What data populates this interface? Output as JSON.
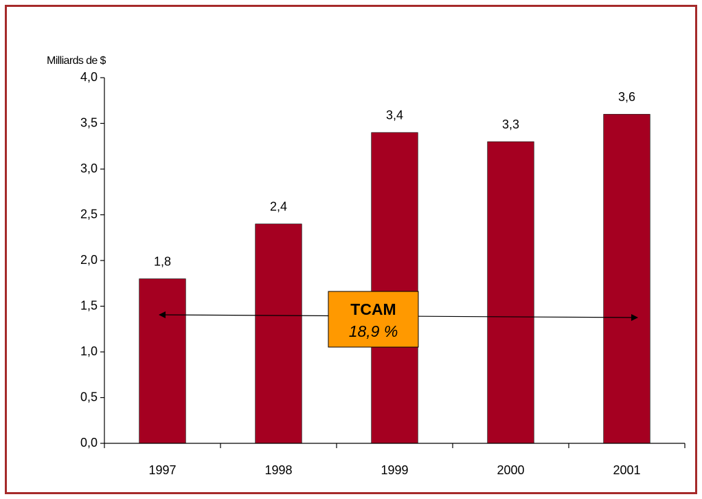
{
  "chart_data": {
    "type": "bar",
    "y_axis_label": "Milliards de $",
    "categories": [
      "1997",
      "1998",
      "1999",
      "2000",
      "2001"
    ],
    "values": [
      1.8,
      2.4,
      3.4,
      3.3,
      3.6
    ],
    "value_labels": [
      "1,8",
      "2,4",
      "3,4",
      "3,3",
      "3,6"
    ],
    "color": "#a50021",
    "ylim": [
      0,
      4
    ],
    "yticks": [
      {
        "value": 0,
        "label": "0,0"
      },
      {
        "value": 0.5,
        "label": "0,5"
      },
      {
        "value": 1,
        "label": "1,0"
      },
      {
        "value": 1.5,
        "label": "1,5"
      },
      {
        "value": 2,
        "label": "2,0"
      },
      {
        "value": 2.5,
        "label": "2,5"
      },
      {
        "value": 3,
        "label": "3,0"
      },
      {
        "value": 3.5,
        "label": "3,5"
      },
      {
        "value": 4,
        "label": "4,0"
      }
    ],
    "grid": false,
    "annotation": {
      "title": "TCAM",
      "text": "18,9 %"
    }
  }
}
